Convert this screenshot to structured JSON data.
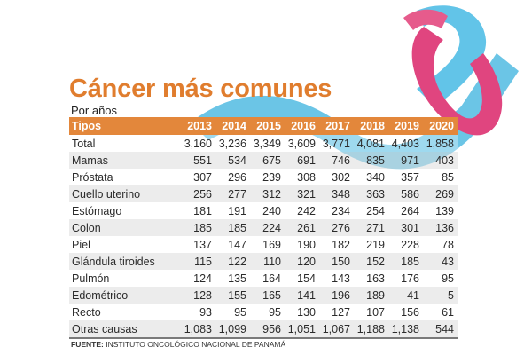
{
  "header": {
    "title": "Cáncer más comunes",
    "subtitle": "Por años"
  },
  "colors": {
    "title": "#e07d2e",
    "header_bg": "#e3873b",
    "ribbon_blue": "#5bbfe3",
    "ribbon_pink": "#e0457f",
    "row_shade": "#dddddd"
  },
  "icons": [
    "awareness-ribbon-icon"
  ],
  "chart_data": {
    "type": "table",
    "columns": [
      "Tipos",
      "2013",
      "2014",
      "2015",
      "2016",
      "2017",
      "2018",
      "2019",
      "2020"
    ],
    "rows": [
      {
        "tipo": "Total",
        "values": [
          "3,160",
          "3,236",
          "3,349",
          "3,609",
          "3,771",
          "4,081",
          "4,403",
          "1,858"
        ]
      },
      {
        "tipo": "Mamas",
        "values": [
          "551",
          "534",
          "675",
          "691",
          "746",
          "835",
          "971",
          "403"
        ]
      },
      {
        "tipo": "Próstata",
        "values": [
          "307",
          "296",
          "239",
          "308",
          "302",
          "340",
          "357",
          "85"
        ]
      },
      {
        "tipo": "Cuello uterino",
        "values": [
          "256",
          "277",
          "312",
          "321",
          "348",
          "363",
          "586",
          "269"
        ]
      },
      {
        "tipo": "Estómago",
        "values": [
          "181",
          "191",
          "240",
          "242",
          "234",
          "254",
          "264",
          "139"
        ]
      },
      {
        "tipo": "Colon",
        "values": [
          "185",
          "185",
          "224",
          "261",
          "276",
          "271",
          "301",
          "136"
        ]
      },
      {
        "tipo": "Piel",
        "values": [
          "137",
          "147",
          "169",
          "190",
          "182",
          "219",
          "228",
          "78"
        ]
      },
      {
        "tipo": "Glándula tiroides",
        "values": [
          "115",
          "122",
          "110",
          "120",
          "150",
          "152",
          "185",
          "43"
        ]
      },
      {
        "tipo": "Pulmón",
        "values": [
          "124",
          "135",
          "164",
          "154",
          "143",
          "163",
          "176",
          "95"
        ]
      },
      {
        "tipo": "Edométrico",
        "values": [
          "128",
          "155",
          "165",
          "141",
          "196",
          "189",
          "41",
          "5"
        ]
      },
      {
        "tipo": "Recto",
        "values": [
          "93",
          "95",
          "95",
          "130",
          "127",
          "107",
          "156",
          "61"
        ]
      },
      {
        "tipo": "Otras causas",
        "values": [
          "1,083",
          "1,099",
          "956",
          "1,051",
          "1,067",
          "1,188",
          "1,138",
          "544"
        ]
      }
    ]
  },
  "footer": {
    "source_label": "FUENTE:",
    "source_text": "INSTITUTO ONCOLÓGICO NACIONAL DE PANAMÁ"
  }
}
